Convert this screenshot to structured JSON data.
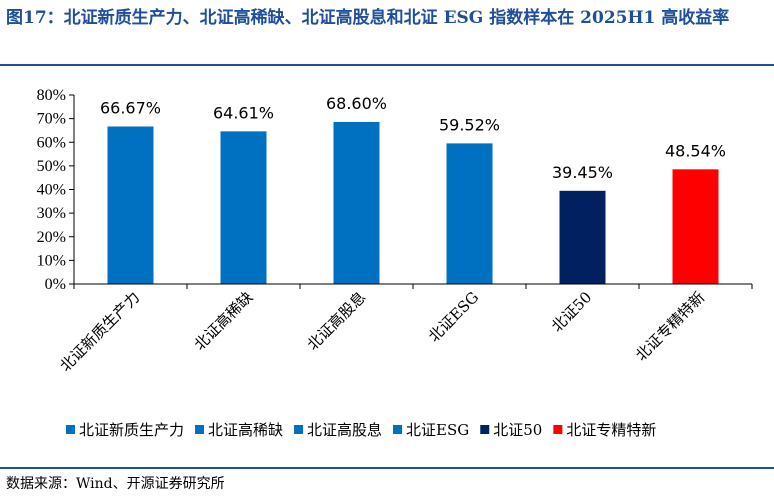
{
  "header": {
    "title": "图17：北证新质生产力、北证高稀缺、北证高股息和北证 ESG 指数样本在 2025H1 高收益率"
  },
  "footer": {
    "source": "数据来源：Wind、开源证券研究所"
  },
  "colors": {
    "title": "#1f4e9a",
    "bar_blue": "#0070c0",
    "bar_navy": "#002060",
    "bar_red": "#ff0000"
  },
  "chart_data": {
    "type": "bar",
    "title": "",
    "xlabel": "",
    "ylabel": "",
    "ylim": [
      0,
      80
    ],
    "yticks": [
      "0%",
      "10%",
      "20%",
      "30%",
      "40%",
      "50%",
      "60%",
      "70%",
      "80%"
    ],
    "categories": [
      "北证新质生产力",
      "北证高稀缺",
      "北证高股息",
      "北证ESG",
      "北证50",
      "北证专精特新"
    ],
    "values": [
      66.67,
      64.61,
      68.6,
      59.52,
      39.45,
      48.54
    ],
    "data_labels": [
      "66.67%",
      "64.61%",
      "68.60%",
      "59.52%",
      "39.45%",
      "48.54%"
    ],
    "bar_colors": [
      "#0070c0",
      "#0070c0",
      "#0070c0",
      "#0070c0",
      "#002060",
      "#ff0000"
    ],
    "grid": false,
    "legend_position": "bottom",
    "legend": [
      "北证新质生产力",
      "北证高稀缺",
      "北证高股息",
      "北证ESG",
      "北证50",
      "北证专精特新"
    ]
  }
}
